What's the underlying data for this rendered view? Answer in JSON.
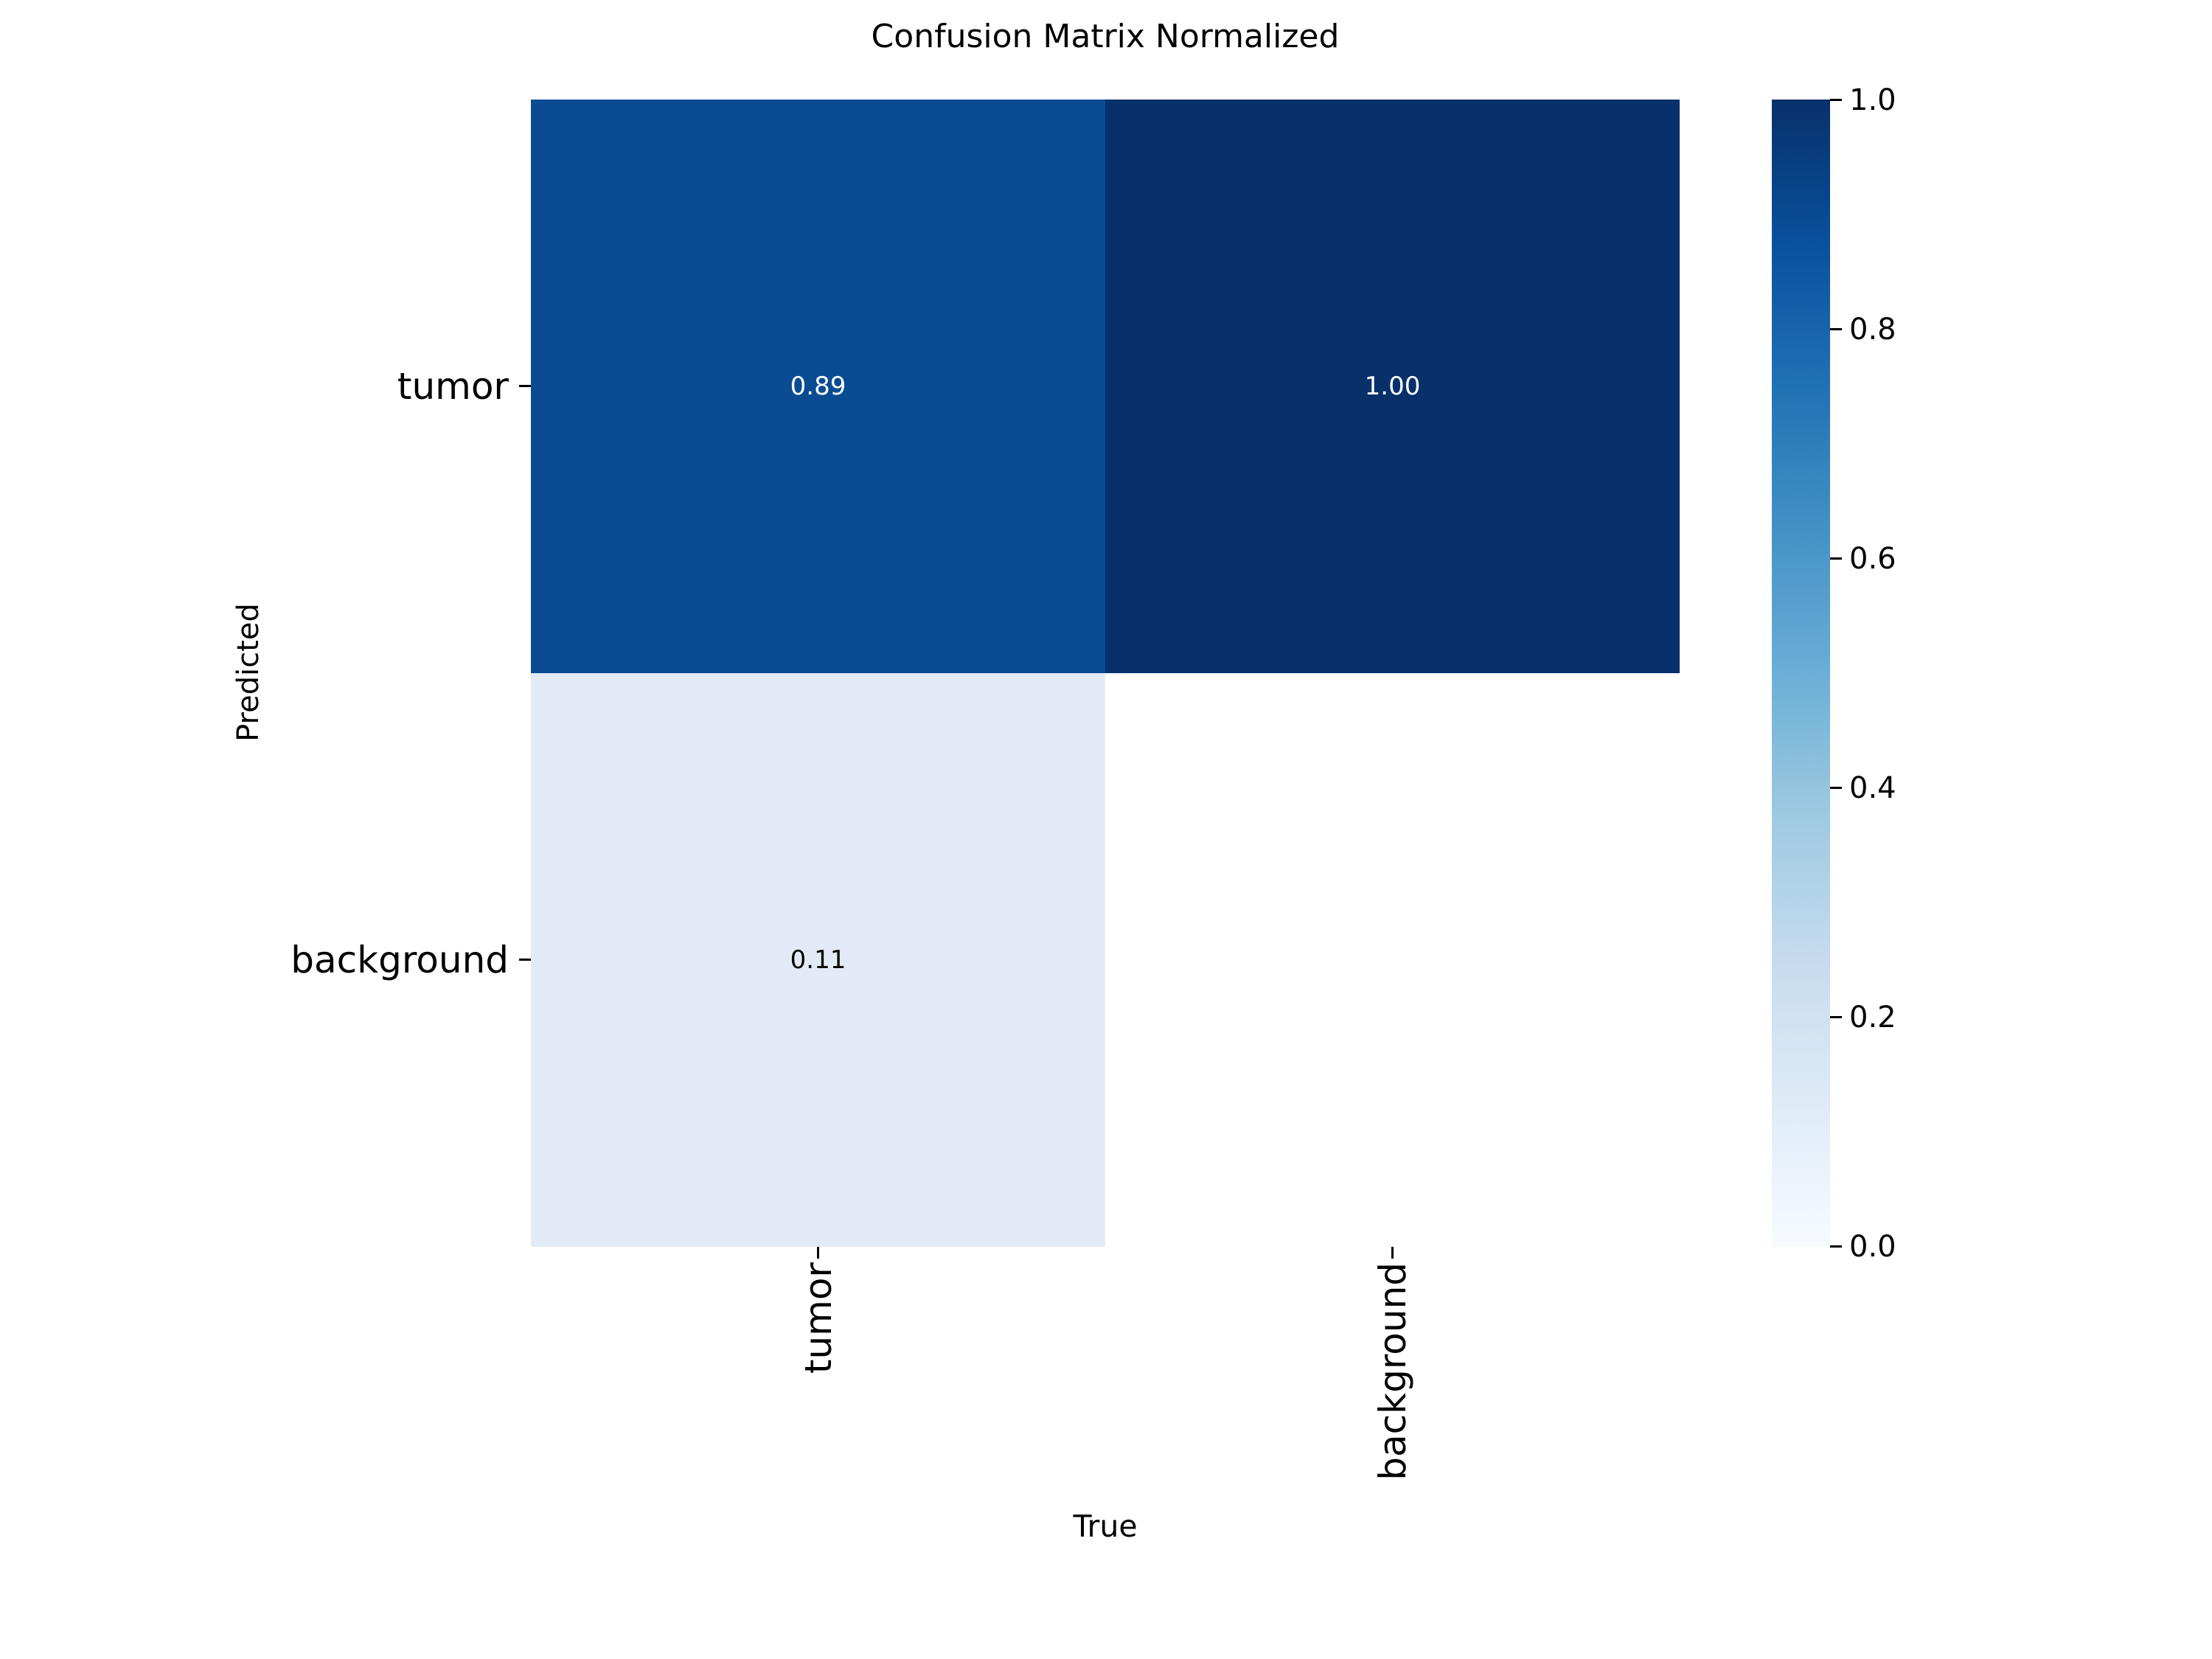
{
  "chart_data": {
    "type": "heatmap",
    "title": "Confusion Matrix Normalized",
    "xlabel": "True",
    "ylabel": "Predicted",
    "x_categories": [
      "tumor",
      "background"
    ],
    "y_categories": [
      "tumor",
      "background"
    ],
    "matrix": [
      [
        0.89,
        1.0
      ],
      [
        0.11,
        null
      ]
    ],
    "cell_labels": [
      [
        "0.89",
        "1.00"
      ],
      [
        "0.11",
        ""
      ]
    ],
    "cell_colors": [
      [
        "#0a4c94",
        "#08306b"
      ],
      [
        "#e2ebf5",
        "#ffffff"
      ]
    ],
    "cell_text_colors": [
      [
        "#ffffff",
        "#ffffff"
      ],
      [
        "#000000",
        "#000000"
      ]
    ],
    "colormap": "Blues",
    "vmin": 0.0,
    "vmax": 1.0,
    "colorbar_ticks": [
      "1.0",
      "0.8",
      "0.6",
      "0.4",
      "0.2",
      "0.0"
    ],
    "colormap_stops": [
      {
        "pos": "0%",
        "color": "#f7fbff"
      },
      {
        "pos": "12.5%",
        "color": "#deebf7"
      },
      {
        "pos": "25%",
        "color": "#c6dbef"
      },
      {
        "pos": "37.5%",
        "color": "#9ecae1"
      },
      {
        "pos": "50%",
        "color": "#6baed6"
      },
      {
        "pos": "62.5%",
        "color": "#4292c6"
      },
      {
        "pos": "75%",
        "color": "#2171b5"
      },
      {
        "pos": "87.5%",
        "color": "#08519c"
      },
      {
        "pos": "100%",
        "color": "#08306b"
      }
    ],
    "legend_position": "right",
    "grid": false
  }
}
